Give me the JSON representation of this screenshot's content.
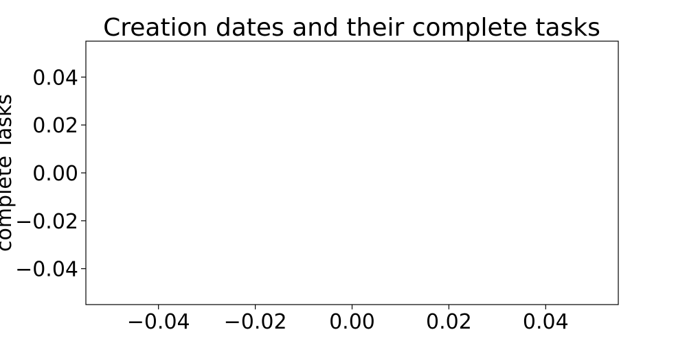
{
  "chart_data": {
    "type": "scatter",
    "title": "Creation dates and their complete tasks",
    "xlabel": "",
    "ylabel": "complete Tasks",
    "series": [],
    "xlim": [
      -0.055,
      0.055
    ],
    "ylim": [
      -0.055,
      0.055
    ],
    "x_ticks": [
      -0.04,
      -0.02,
      0.0,
      0.02,
      0.04
    ],
    "y_ticks": [
      -0.04,
      -0.02,
      0.0,
      0.02,
      0.04
    ],
    "x_tick_labels": [
      "−0.04",
      "−0.02",
      "0.00",
      "0.02",
      "0.04"
    ],
    "y_tick_labels": [
      "−0.04",
      "−0.02",
      "0.00",
      "0.02",
      "0.04"
    ],
    "grid": false,
    "legend": "none"
  }
}
